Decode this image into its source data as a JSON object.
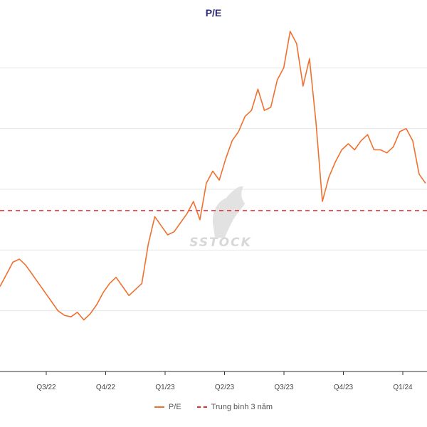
{
  "chart_data": {
    "type": "line",
    "title": "P/E",
    "x_ticks": [
      "Q3/22",
      "Q4/22",
      "Q1/23",
      "Q2/23",
      "Q3/23",
      "Q4/23",
      "Q1/24"
    ],
    "series": [
      {
        "name": "P/E",
        "color": "#f07030",
        "values": [
          6.8,
          7.2,
          7.6,
          7.7,
          7.5,
          7.2,
          6.9,
          6.6,
          6.3,
          6.0,
          5.85,
          5.8,
          5.95,
          5.7,
          5.9,
          6.2,
          6.6,
          6.9,
          7.1,
          6.8,
          6.5,
          6.7,
          6.9,
          8.2,
          9.1,
          8.8,
          8.5,
          8.6,
          8.9,
          9.2,
          9.6,
          9.0,
          10.2,
          10.6,
          10.3,
          11.0,
          11.6,
          11.9,
          12.4,
          12.6,
          13.3,
          12.6,
          12.7,
          13.6,
          14.0,
          15.2,
          14.8,
          13.4,
          14.3,
          12.2,
          9.6,
          10.4,
          10.9,
          11.3,
          11.5,
          11.3,
          11.6,
          11.8,
          11.3,
          11.3,
          11.2,
          11.4,
          11.9,
          12.0,
          11.6,
          10.5,
          10.2
        ]
      },
      {
        "name": "Trung bình 3 năm",
        "color": "#e03030",
        "style": "dashed",
        "values": [
          9.3
        ]
      }
    ],
    "y_range": [
      4.0,
      16.0
    ],
    "grid": "horizontal",
    "legend_position": "bottom",
    "watermark": "SSTOCK"
  }
}
